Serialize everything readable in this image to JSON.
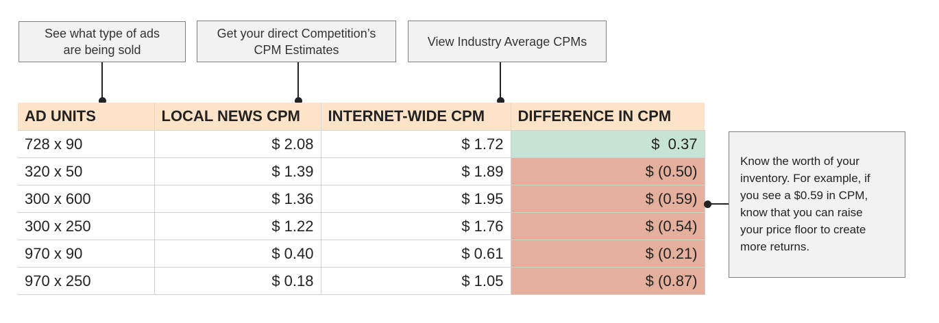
{
  "callouts": {
    "ad_types": [
      "See what type of ads",
      "are being sold"
    ],
    "competition": [
      "Get your direct Competition’s",
      "CPM Estimates"
    ],
    "industry": [
      "View Industry Average CPMs"
    ]
  },
  "table": {
    "headers": [
      "AD UNITS",
      "LOCAL NEWS CPM",
      "INTERNET-WIDE CPM",
      "DIFFERENCE IN CPM"
    ],
    "rows": [
      {
        "unit": "728 x 90",
        "local": "$ 2.08",
        "internet": "$ 1.72",
        "diff": "$  0.37",
        "status": "positive"
      },
      {
        "unit": "320 x 50",
        "local": "$ 1.39",
        "internet": "$ 1.89",
        "diff": "$ (0.50)",
        "status": "negative"
      },
      {
        "unit": "300 x 600",
        "local": "$ 1.36",
        "internet": "$ 1.95",
        "diff": "$ (0.59)",
        "status": "negative"
      },
      {
        "unit": "300 x 250",
        "local": "$ 1.22",
        "internet": "$ 1.76",
        "diff": "$ (0.54)",
        "status": "negative"
      },
      {
        "unit": "970 x 90",
        "local": "$ 0.40",
        "internet": "$ 0.61",
        "diff": "$ (0.21)",
        "status": "negative"
      },
      {
        "unit": "970 x 250",
        "local": "$ 0.18",
        "internet": "$ 1.05",
        "diff": "$ (0.87)",
        "status": "negative"
      }
    ]
  },
  "note": {
    "lines": [
      "Know the worth of your",
      "inventory. For example, if",
      "you see a $0.59 in CPM,",
      "know that you can raise",
      "your price floor to create",
      "more returns."
    ]
  },
  "colors": {
    "header_bg": "#fde3c8",
    "positive_bg": "#c6e3d3",
    "negative_bg": "#e4b09d",
    "callout_bg": "#f2f2f2"
  }
}
